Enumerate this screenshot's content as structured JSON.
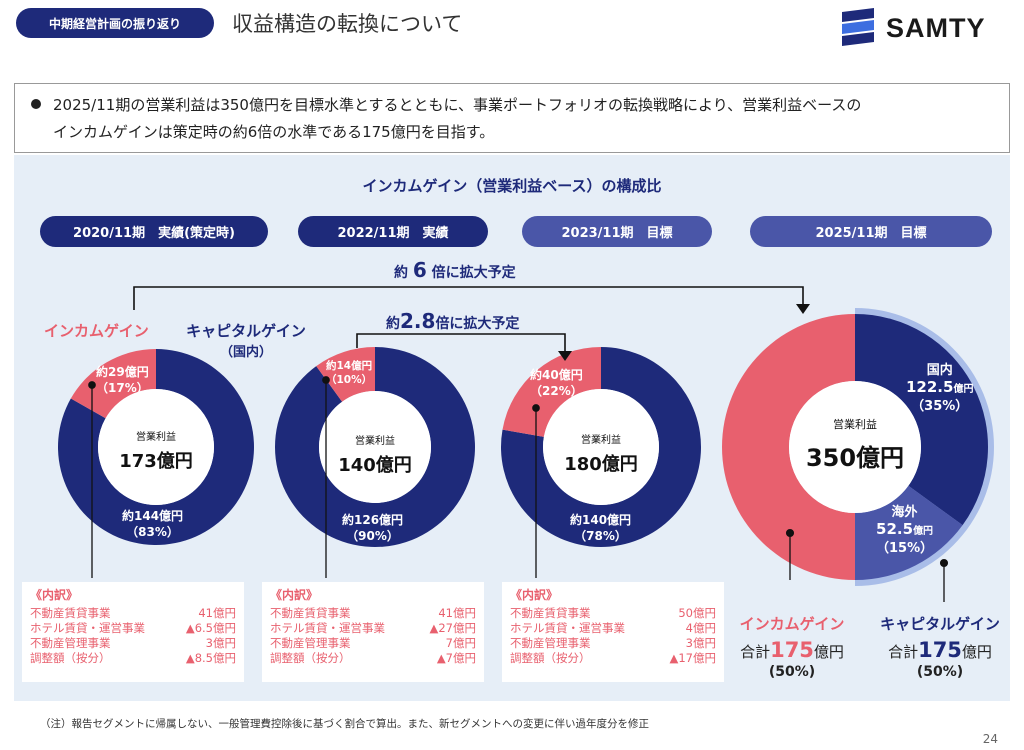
{
  "header": {
    "badge": "中期経営計画の振り返り",
    "title": "収益構造の転換について",
    "logo_text": "SAMTY"
  },
  "summary": {
    "line1": "2025/11期の営業利益は350億円を目標水準とするとともに、事業ポートフォリオの転換戦略により、営業利益ベースの",
    "line2": "インカムゲインは策定時の約6倍の水準である175億円を目指す。"
  },
  "section_title": "インカムゲイン（営業利益ベース）の構成比",
  "periods": [
    {
      "label": "2020/11期　実績(策定時)",
      "kind": "actual"
    },
    {
      "label": "2022/11期　実績",
      "kind": "actual"
    },
    {
      "label": "2023/11期　目標",
      "kind": "target"
    },
    {
      "label": "2025/11期　目標",
      "kind": "target"
    }
  ],
  "expansion": {
    "six_pre": "約",
    "six_num": "6",
    "six_post": "倍に拡大予定",
    "two_pre": "約",
    "two_num": "2.8",
    "two_post": "倍に拡大予定"
  },
  "legend": {
    "income": "インカムゲイン",
    "capital_line1": "キャピタルゲイン",
    "capital_line2": "（国内）"
  },
  "colors": {
    "income": "#e8606e",
    "capital_domestic": "#1e2a7a",
    "capital_overseas": "#4a56a8",
    "ring_outline": "#a9bde8",
    "panel": "#e6eef7"
  },
  "chart_data": [
    {
      "type": "pie",
      "period": "2020/11期　実績(策定時)",
      "center_caption": "営業利益",
      "center_value": "173億円",
      "total": 173,
      "segments": [
        {
          "name": "インカムゲイン",
          "value": 29,
          "label": "約29億円",
          "pct": "（17%）",
          "pct_value": 17
        },
        {
          "name": "キャピタルゲイン（国内）",
          "value": 144,
          "label": "約144億円",
          "pct": "（83%）",
          "pct_value": 83
        }
      ]
    },
    {
      "type": "pie",
      "period": "2022/11期　実績",
      "center_caption": "営業利益",
      "center_value": "140億円",
      "total": 140,
      "segments": [
        {
          "name": "インカムゲイン",
          "value": 14,
          "label": "約14億円",
          "pct": "（10%）",
          "pct_value": 10
        },
        {
          "name": "キャピタルゲイン（国内）",
          "value": 126,
          "label": "約126億円",
          "pct": "（90%）",
          "pct_value": 90
        }
      ]
    },
    {
      "type": "pie",
      "period": "2023/11期　目標",
      "center_caption": "営業利益",
      "center_value": "180億円",
      "total": 180,
      "segments": [
        {
          "name": "インカムゲイン",
          "value": 40,
          "label": "約40億円",
          "pct": "（22%）",
          "pct_value": 22
        },
        {
          "name": "キャピタルゲイン（国内）",
          "value": 140,
          "label": "約140億円",
          "pct": "（78%）",
          "pct_value": 78
        }
      ]
    },
    {
      "type": "pie",
      "period": "2025/11期　目標",
      "center_caption": "営業利益",
      "center_value": "350億円",
      "total": 350,
      "segments": [
        {
          "name": "インカムゲイン",
          "value": 175,
          "pct_value": 50
        },
        {
          "name": "国内",
          "value": 122.5,
          "label": "122.5億円",
          "pct": "（35%）",
          "pct_value": 35
        },
        {
          "name": "海外",
          "value": 52.5,
          "label": "52.5億円",
          "pct": "（15%）",
          "pct_value": 15
        }
      ]
    }
  ],
  "breakdowns": [
    {
      "title": "《内訳》",
      "rows": [
        {
          "name": "不動産賃貸事業",
          "value": "41億円"
        },
        {
          "name": "ホテル賃貸・運営事業",
          "value": "▲6.5億円"
        },
        {
          "name": "不動産管理事業",
          "value": "3億円"
        },
        {
          "name": "調整額（按分）",
          "value": "▲8.5億円"
        }
      ]
    },
    {
      "title": "《内訳》",
      "rows": [
        {
          "name": "不動産賃貸事業",
          "value": "41億円"
        },
        {
          "name": "ホテル賃貸・運営事業",
          "value": "▲27億円"
        },
        {
          "name": "不動産管理事業",
          "value": "7億円"
        },
        {
          "name": "調整額（按分）",
          "value": "▲7億円"
        }
      ]
    },
    {
      "title": "《内訳》",
      "rows": [
        {
          "name": "不動産賃貸事業",
          "value": "50億円"
        },
        {
          "name": "ホテル賃貸・運営事業",
          "value": "4億円"
        },
        {
          "name": "不動産管理事業",
          "value": "3億円"
        },
        {
          "name": "調整額（按分）",
          "value": "▲17億円"
        }
      ]
    }
  ],
  "big_labels": {
    "domestic_name": "国内",
    "domestic_num": "122.5",
    "domestic_unit": "億円",
    "domestic_pct": "（35%）",
    "overseas_name": "海外",
    "overseas_num": "52.5",
    "overseas_unit": "億円",
    "overseas_pct": "（15%）"
  },
  "totals": {
    "income_label": "インカムゲイン",
    "income_sum_prefix": "合計",
    "income_sum_num": "175",
    "income_sum_unit": "億円",
    "income_pct": "(50%)",
    "capital_label": "キャピタルゲイン",
    "capital_sum_prefix": "合計",
    "capital_sum_num": "175",
    "capital_sum_unit": "億円",
    "capital_pct": "(50%)"
  },
  "footnote": "（注）報告セグメントに帰属しない、一般管理費控除後に基づく割合で算出。また、新セグメントへの変更に伴い過年度分を修正",
  "page_number": "24"
}
